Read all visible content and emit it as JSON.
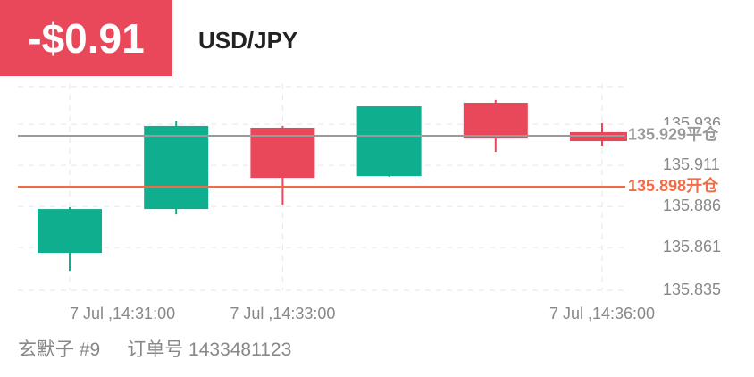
{
  "header": {
    "pnl": "-$0.91",
    "symbol": "USD/JPY"
  },
  "chart_data": {
    "type": "candlestick",
    "categories": [
      "7 Jul ,14:31:00",
      null,
      "7 Jul ,14:33:00",
      null,
      null,
      "7 Jul ,14:36:00"
    ],
    "open": [
      135.8578,
      135.8844,
      135.9339,
      135.9045,
      135.9491,
      135.9312
    ],
    "high": [
      135.8855,
      135.9377,
      135.935,
      135.9469,
      135.9508,
      135.9366
    ],
    "low": [
      135.8469,
      135.8811,
      135.8871,
      135.904,
      135.9192,
      135.923
    ],
    "close": [
      135.8844,
      135.935,
      135.9034,
      135.9469,
      135.9274,
      135.9257
    ],
    "up_color": "#0fae8e",
    "down_color": "#e9485a",
    "ylim": [
      135.835,
      135.9605
    ],
    "yticks": [
      135.835,
      135.861,
      135.886,
      135.911,
      135.936
    ],
    "grid": true,
    "lines": [
      {
        "value": 135.929,
        "label": "135.929平仓",
        "color": "#9a9a9a"
      },
      {
        "value": 135.898,
        "label": "135.898开仓",
        "color": "#f26b47"
      }
    ]
  },
  "footer": {
    "account": "玄默子 #9",
    "order": "订单号 1433481123"
  }
}
